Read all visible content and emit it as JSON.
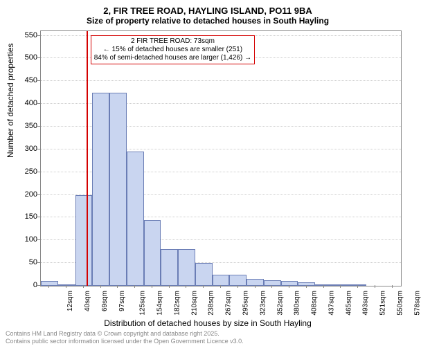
{
  "title_main": "2, FIR TREE ROAD, HAYLING ISLAND, PO11 9BA",
  "title_sub": "Size of property relative to detached houses in South Hayling",
  "chart": {
    "type": "histogram",
    "y_label": "Number of detached properties",
    "x_label": "Distribution of detached houses by size in South Hayling",
    "ylim": [
      0,
      560
    ],
    "y_ticks": [
      0,
      50,
      100,
      150,
      200,
      250,
      300,
      350,
      400,
      450,
      500,
      550
    ],
    "x_tick_labels": [
      "12sqm",
      "40sqm",
      "69sqm",
      "97sqm",
      "125sqm",
      "154sqm",
      "182sqm",
      "210sqm",
      "238sqm",
      "267sqm",
      "295sqm",
      "323sqm",
      "352sqm",
      "380sqm",
      "408sqm",
      "437sqm",
      "465sqm",
      "493sqm",
      "521sqm",
      "550sqm",
      "578sqm"
    ],
    "bar_values": [
      10,
      2,
      200,
      425,
      425,
      295,
      145,
      80,
      80,
      50,
      25,
      24,
      15,
      12,
      10,
      8,
      3,
      2,
      1,
      0,
      0
    ],
    "bar_fill": "#c9d5f0",
    "bar_stroke": "#6a7db5",
    "grid_color": "#cccccc",
    "axis_color": "#888888",
    "background": "#ffffff",
    "marker_value": 73,
    "marker_color": "#d40000",
    "annotation_lines": [
      "2 FIR TREE ROAD: 73sqm",
      "← 15% of detached houses are smaller (251)",
      "84% of semi-detached houses are larger (1,426) →"
    ]
  },
  "footer_line1": "Contains HM Land Registry data © Crown copyright and database right 2025.",
  "footer_line2": "Contains public sector information licensed under the Open Government Licence v3.0."
}
